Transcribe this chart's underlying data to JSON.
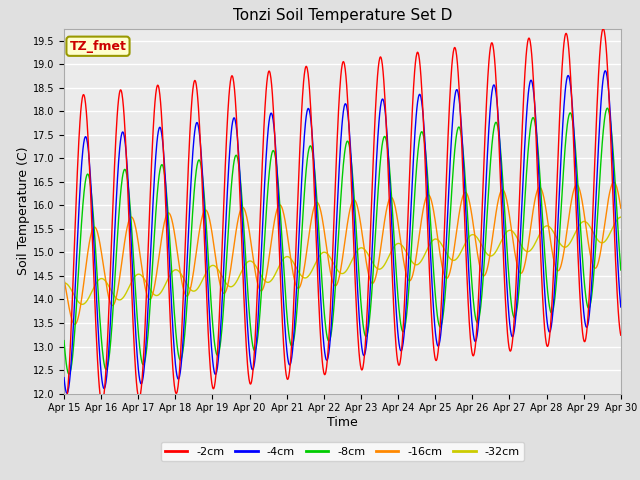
{
  "title": "Tonzi Soil Temperature Set D",
  "xlabel": "Time",
  "ylabel": "Soil Temperature (C)",
  "ylim": [
    12.0,
    19.75
  ],
  "yticks": [
    12.0,
    12.5,
    13.0,
    13.5,
    14.0,
    14.5,
    15.0,
    15.5,
    16.0,
    16.5,
    17.0,
    17.5,
    18.0,
    18.5,
    19.0,
    19.5
  ],
  "colors": {
    "-2cm": "#FF0000",
    "-4cm": "#0000FF",
    "-8cm": "#00CC00",
    "-16cm": "#FF8800",
    "-32cm": "#CCCC00"
  },
  "legend_label": "TZ_fmet",
  "legend_box_color": "#FFFFCC",
  "legend_text_color": "#CC0000",
  "legend_box_edge_color": "#999900",
  "bg_color": "#E0E0E0",
  "plot_bg_color": "#EBEBEB",
  "grid_color": "#FFFFFF",
  "x_start": 15.0,
  "x_end": 30.0,
  "xtick_positions": [
    15,
    16,
    17,
    18,
    19,
    20,
    21,
    22,
    23,
    24,
    25,
    26,
    27,
    28,
    29,
    30
  ],
  "xtick_labels": [
    "Apr 15",
    "Apr 16",
    "Apr 17",
    "Apr 18",
    "Apr 19",
    "Apr 20",
    "Apr 21",
    "Apr 22",
    "Apr 23",
    "Apr 24",
    "Apr 25",
    "Apr 26",
    "Apr 27",
    "Apr 28",
    "Apr 29",
    "Apr 30"
  ]
}
